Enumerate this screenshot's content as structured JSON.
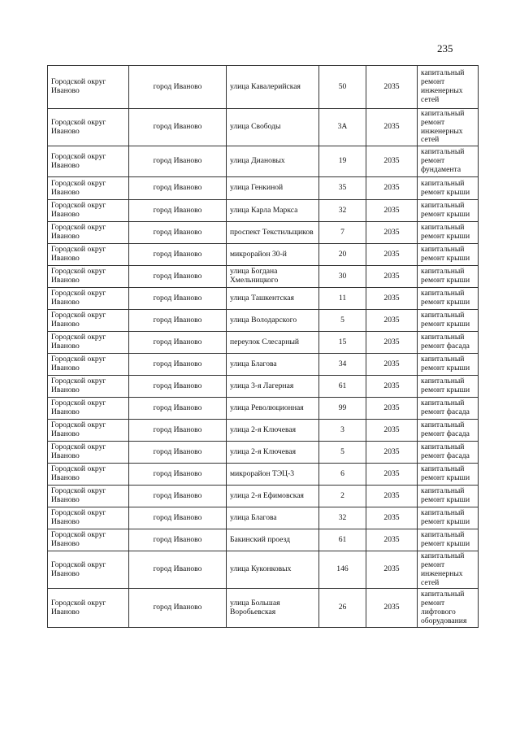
{
  "page_number": "235",
  "rows": [
    {
      "okrug": "Городской округ Иваново",
      "city": "город Иваново",
      "street": "улица Кавалерийская",
      "house": "50",
      "year": "2035",
      "work": "капитальный ремонт инженерных сетей"
    },
    {
      "okrug": "Городской округ Иваново",
      "city": "город Иваново",
      "street": "улица Свободы",
      "house": "3А",
      "year": "2035",
      "work": "капитальный ремонт инженерных сетей"
    },
    {
      "okrug": "Городской округ Иваново",
      "city": "город Иваново",
      "street": "улица Диановых",
      "house": "19",
      "year": "2035",
      "work": "капитальный ремонт фундамента"
    },
    {
      "okrug": "Городской округ Иваново",
      "city": "город Иваново",
      "street": "улица Генкиной",
      "house": "35",
      "year": "2035",
      "work": "капитальный ремонт крыши"
    },
    {
      "okrug": "Городской округ Иваново",
      "city": "город Иваново",
      "street": "улица Карла Маркса",
      "house": "32",
      "year": "2035",
      "work": "капитальный ремонт крыши"
    },
    {
      "okrug": "Городской округ Иваново",
      "city": "город Иваново",
      "street": "проспект Текстильщиков",
      "house": "7",
      "year": "2035",
      "work": "капитальный ремонт крыши"
    },
    {
      "okrug": "Городской округ Иваново",
      "city": "город Иваново",
      "street": "микрорайон 30-й",
      "house": "20",
      "year": "2035",
      "work": "капитальный ремонт крыши"
    },
    {
      "okrug": "Городской округ Иваново",
      "city": "город Иваново",
      "street": "улица Богдана Хмельницкого",
      "house": "30",
      "year": "2035",
      "work": "капитальный ремонт крыши"
    },
    {
      "okrug": "Городской округ Иваново",
      "city": "город Иваново",
      "street": "улица Ташкентская",
      "house": "11",
      "year": "2035",
      "work": "капитальный ремонт крыши"
    },
    {
      "okrug": "Городской округ Иваново",
      "city": "город Иваново",
      "street": "улица Володарского",
      "house": "5",
      "year": "2035",
      "work": "капитальный ремонт крыши"
    },
    {
      "okrug": "Городской округ Иваново",
      "city": "город Иваново",
      "street": "переулок Слесарный",
      "house": "15",
      "year": "2035",
      "work": "капитальный ремонт фасада"
    },
    {
      "okrug": "Городской округ Иваново",
      "city": "город Иваново",
      "street": "улица Благова",
      "house": "34",
      "year": "2035",
      "work": "капитальный ремонт крыши"
    },
    {
      "okrug": "Городской округ Иваново",
      "city": "город Иваново",
      "street": "улица 3-я Лагерная",
      "house": "61",
      "year": "2035",
      "work": "капитальный ремонт крыши"
    },
    {
      "okrug": "Городской округ Иваново",
      "city": "город Иваново",
      "street": "улица Революционная",
      "house": "99",
      "year": "2035",
      "work": "капитальный ремонт фасада"
    },
    {
      "okrug": "Городской округ Иваново",
      "city": "город Иваново",
      "street": "улица 2-я Ключевая",
      "house": "3",
      "year": "2035",
      "work": "капитальный ремонт фасада"
    },
    {
      "okrug": "Городской округ Иваново",
      "city": "город Иваново",
      "street": "улица 2-я Ключевая",
      "house": "5",
      "year": "2035",
      "work": "капитальный ремонт фасада"
    },
    {
      "okrug": "Городской округ Иваново",
      "city": "город Иваново",
      "street": "микрорайон ТЭЦ-3",
      "house": "6",
      "year": "2035",
      "work": "капитальный ремонт крыши"
    },
    {
      "okrug": "Городской округ Иваново",
      "city": "город Иваново",
      "street": "улица 2-я Ефимовская",
      "house": "2",
      "year": "2035",
      "work": "капитальный ремонт крыши"
    },
    {
      "okrug": "Городской округ Иваново",
      "city": "город Иваново",
      "street": "улица Благова",
      "house": "32",
      "year": "2035",
      "work": "капитальный ремонт крыши"
    },
    {
      "okrug": "Городской округ Иваново",
      "city": "город Иваново",
      "street": "Бакинский проезд",
      "house": "61",
      "year": "2035",
      "work": "капитальный ремонт крыши"
    },
    {
      "okrug": "Городской округ Иваново",
      "city": "город Иваново",
      "street": "улица Куконковых",
      "house": "146",
      "year": "2035",
      "work": "капитальный ремонт инженерных сетей"
    },
    {
      "okrug": "Городской округ Иваново",
      "city": "город Иваново",
      "street": "улица Большая Воробьевская",
      "house": "26",
      "year": "2035",
      "work": "капитальный ремонт лифтового оборудования"
    }
  ]
}
